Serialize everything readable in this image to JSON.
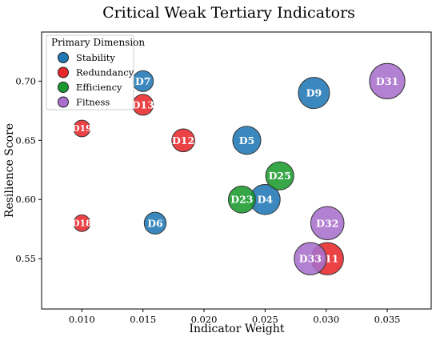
{
  "chart_data": {
    "type": "scatter",
    "title": "Critical Weak Tertiary Indicators",
    "xlabel": "Indicator Weight",
    "ylabel": "Resilience Score",
    "xlim": [
      0.0067,
      0.0386
    ],
    "ylim": [
      0.5075,
      0.7415
    ],
    "xticks": [
      "0.010",
      "0.015",
      "0.020",
      "0.025",
      "0.030",
      "0.035"
    ],
    "xtick_values": [
      0.01,
      0.015,
      0.02,
      0.025,
      0.03,
      0.035
    ],
    "yticks": [
      "0.55",
      "0.60",
      "0.65",
      "0.70"
    ],
    "ytick_values": [
      0.55,
      0.6,
      0.65,
      0.7
    ],
    "grid": false,
    "legend": {
      "title": "Primary Dimension",
      "placement": "top-left",
      "entries": [
        {
          "name": "Stability",
          "color": "#1f77b4"
        },
        {
          "name": "Redundancy",
          "color": "#e8282b"
        },
        {
          "name": "Efficiency",
          "color": "#1a9a2e"
        },
        {
          "name": "Fitness",
          "color": "#a86fcc"
        }
      ]
    },
    "points": [
      {
        "label": "D7",
        "x": 0.015,
        "y": 0.7,
        "group": "Stability",
        "size": 1.0
      },
      {
        "label": "D9",
        "x": 0.029,
        "y": 0.69,
        "group": "Stability",
        "size": 1.5
      },
      {
        "label": "D5",
        "x": 0.0235,
        "y": 0.65,
        "group": "Stability",
        "size": 1.35
      },
      {
        "label": "D4",
        "x": 0.025,
        "y": 0.6,
        "group": "Stability",
        "size": 1.45
      },
      {
        "label": "D6",
        "x": 0.016,
        "y": 0.58,
        "group": "Stability",
        "size": 1.05
      },
      {
        "label": "D13",
        "x": 0.015,
        "y": 0.68,
        "group": "Redundancy",
        "size": 1.0
      },
      {
        "label": "D19",
        "x": 0.01,
        "y": 0.66,
        "group": "Redundancy",
        "size": 0.8
      },
      {
        "label": "D12",
        "x": 0.0183,
        "y": 0.65,
        "group": "Redundancy",
        "size": 1.1
      },
      {
        "label": "D18",
        "x": 0.01,
        "y": 0.58,
        "group": "Redundancy",
        "size": 0.8
      },
      {
        "label": "D11",
        "x": 0.0301,
        "y": 0.55,
        "group": "Redundancy",
        "size": 1.55
      },
      {
        "label": "D25",
        "x": 0.0262,
        "y": 0.62,
        "group": "Efficiency",
        "size": 1.35
      },
      {
        "label": "D23",
        "x": 0.0231,
        "y": 0.6,
        "group": "Efficiency",
        "size": 1.3
      },
      {
        "label": "D31",
        "x": 0.035,
        "y": 0.7,
        "group": "Fitness",
        "size": 1.7
      },
      {
        "label": "D32",
        "x": 0.0301,
        "y": 0.58,
        "group": "Fitness",
        "size": 1.6
      },
      {
        "label": "D33",
        "x": 0.0287,
        "y": 0.55,
        "group": "Fitness",
        "size": 1.55
      }
    ]
  }
}
